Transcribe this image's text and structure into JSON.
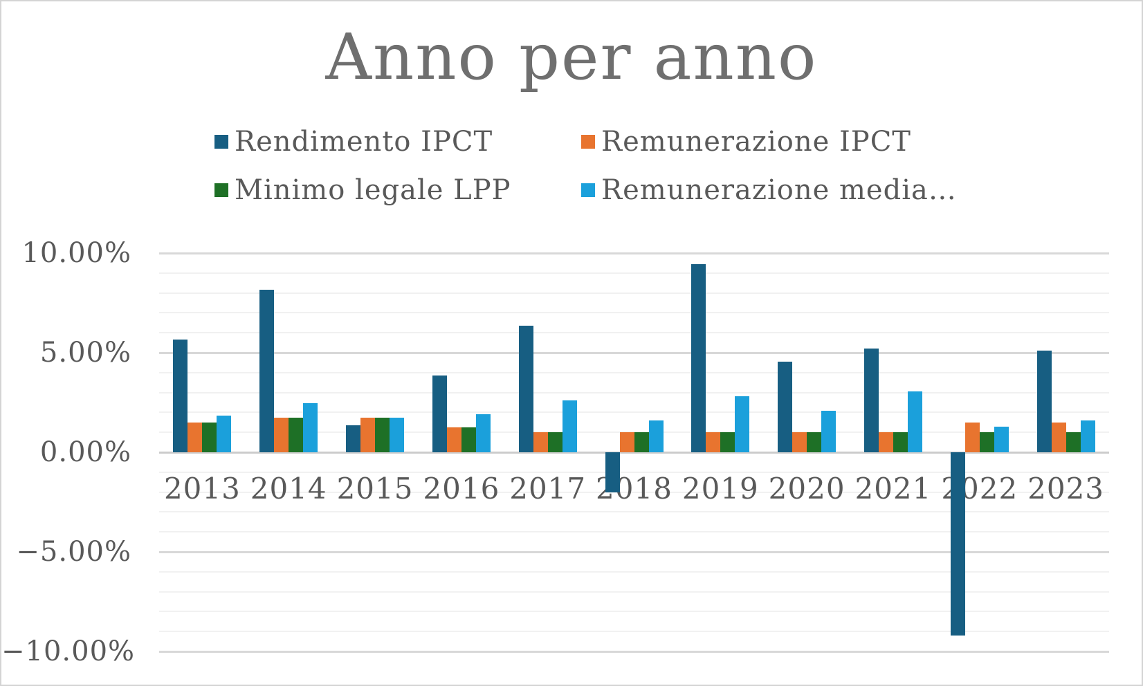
{
  "chart": {
    "title_color": "#6f6f6f",
    "text_color": "#595959",
    "background": "#ffffff",
    "frame_border_color": "#d4d4d4"
  },
  "chart_data": {
    "type": "bar",
    "title": "Anno per anno",
    "categories": [
      "2013",
      "2014",
      "2015",
      "2016",
      "2017",
      "2018",
      "2019",
      "2020",
      "2021",
      "2022",
      "2023"
    ],
    "series": [
      {
        "name": "Rendimento IPCT",
        "color": "#175e82",
        "values": [
          5.65,
          8.15,
          1.35,
          3.85,
          6.35,
          -2.0,
          9.45,
          4.55,
          5.2,
          -9.2,
          5.1
        ]
      },
      {
        "name": "Remunerazione IPCT",
        "color": "#e8742f",
        "values": [
          1.5,
          1.75,
          1.75,
          1.25,
          1.0,
          1.0,
          1.0,
          1.0,
          1.0,
          1.5,
          1.5
        ]
      },
      {
        "name": "Minimo legale LPP",
        "color": "#1e7026",
        "values": [
          1.5,
          1.75,
          1.75,
          1.25,
          1.0,
          1.0,
          1.0,
          1.0,
          1.0,
          1.0,
          1.0
        ]
      },
      {
        "name": "Remunerazione media…",
        "color": "#1ba0db",
        "values": [
          1.85,
          2.45,
          1.75,
          1.9,
          2.6,
          1.6,
          2.8,
          2.1,
          3.05,
          1.3,
          1.6
        ]
      }
    ],
    "legend": [
      {
        "label": "Rendimento IPCT"
      },
      {
        "label": "Remunerazione IPCT"
      },
      {
        "label": "Minimo legale LPP"
      },
      {
        "label": "Remunerazione media…"
      }
    ],
    "legend_position": "top",
    "xlabel": "",
    "ylabel": "",
    "y_axis": {
      "min": -10,
      "max": 10,
      "major_step": 5,
      "minor_step": 1,
      "tick_labels": [
        "10.00%",
        "5.00%",
        "0.00%",
        "−5.00%",
        "−10.00%"
      ]
    },
    "grid": {
      "major_color": "#d8d8d8",
      "minor_color": "#f1f1f1",
      "zero_line_color": "#cccccc"
    }
  }
}
